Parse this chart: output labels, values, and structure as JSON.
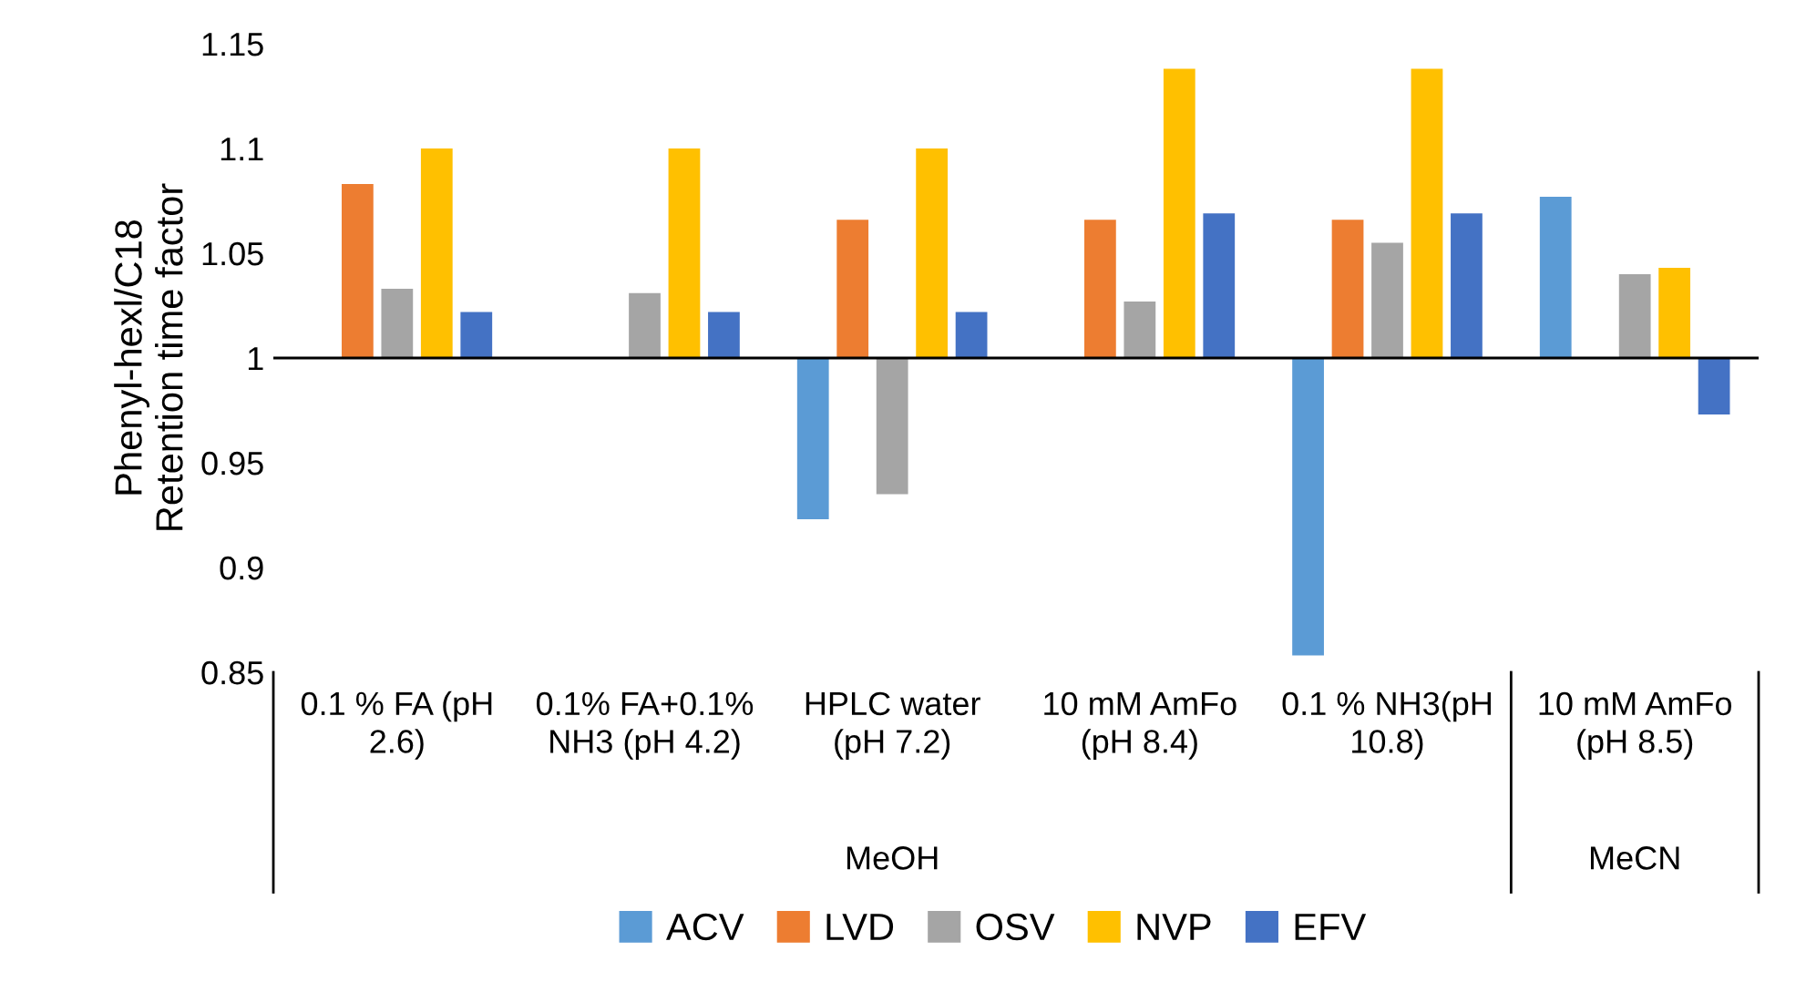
{
  "chart_data": {
    "type": "bar",
    "ylabel": "Phenyl-hexl/C18\nRetention time factor",
    "categories": [
      "0.1 % FA (pH\n2.6)",
      "0.1% FA+0.1%\nNH3 (pH 4.2)",
      "HPLC water\n(pH 7.2)",
      "10 mM AmFo\n(pH 8.4)",
      "0.1 % NH3(pH\n10.8)",
      "10 mM AmFo\n(pH 8.5)"
    ],
    "series": [
      {
        "name": "ACV",
        "color": "#5b9bd5",
        "values": [
          null,
          null,
          -0.077,
          null,
          -0.142,
          0.077
        ],
        "base": [
          null,
          null,
          1,
          null,
          1,
          1
        ]
      },
      {
        "name": "LVD",
        "color": "#ed7d31",
        "values": [
          0.083,
          null,
          0.066,
          0.066,
          0.066,
          null
        ],
        "base": [
          1,
          null,
          1,
          1,
          1,
          null
        ]
      },
      {
        "name": "OSV",
        "color": "#a5a5a5",
        "values": [
          0.033,
          0.031,
          -0.065,
          0.027,
          0.055,
          0.04
        ],
        "base": [
          1,
          1,
          1,
          1,
          1,
          1
        ]
      },
      {
        "name": "NVP",
        "color": "#ffc000",
        "values": [
          0.1,
          0.1,
          0.1,
          0.138,
          0.138,
          0.043
        ],
        "base": [
          1,
          1,
          1,
          1,
          1,
          1
        ]
      },
      {
        "name": "EFV",
        "color": "#4472c4",
        "values": [
          0.022,
          0.022,
          0.022,
          0.069,
          0.069,
          -0.027
        ],
        "base": [
          1,
          1,
          1,
          1,
          1,
          1
        ]
      }
    ],
    "ylim": [
      0.85,
      1.15
    ],
    "yticks": [
      0.85,
      0.9,
      0.95,
      1,
      1.05,
      1.1,
      1.15
    ],
    "ref_lines": [
      {
        "axis": "y",
        "value": 1,
        "color": "#000000"
      }
    ],
    "annotations": [
      "MeOH",
      "MeCN"
    ],
    "grid": false,
    "legend": "bottom"
  }
}
